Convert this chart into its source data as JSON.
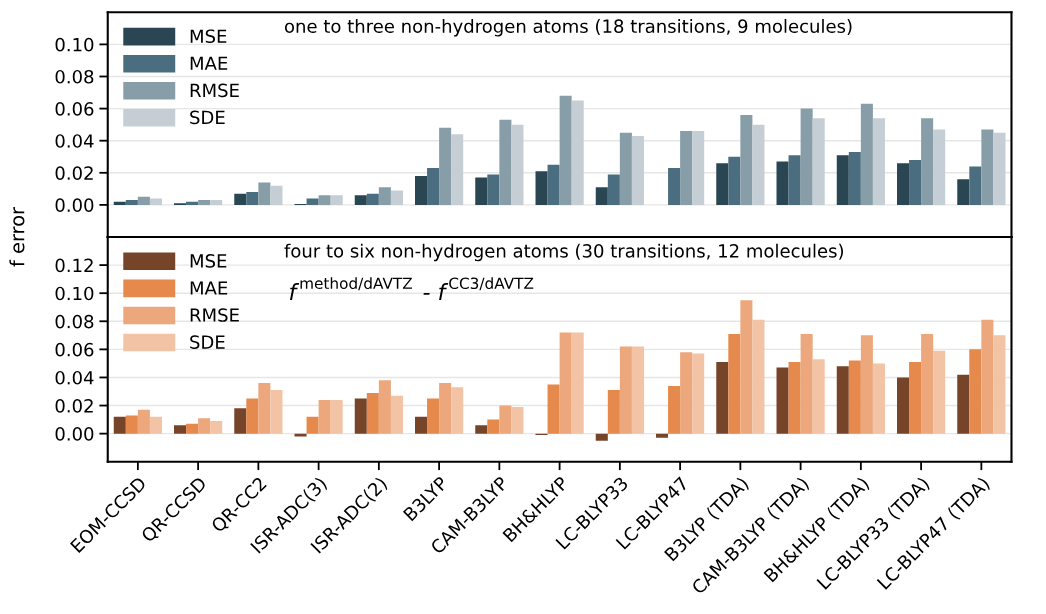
{
  "chart_data": [
    {
      "type": "bar",
      "title": "one to three non-hydrogen atoms (18 transitions, 9 molecules)",
      "ylabel": "f error",
      "categories": [
        null,
        null,
        null,
        null,
        null,
        null,
        null,
        null,
        null,
        null,
        null,
        null,
        null,
        null,
        null
      ],
      "series": [
        {
          "name": "MSE",
          "color": "#2b4653",
          "values": [
            0.002,
            0.001,
            0.007,
            0.0005,
            0.006,
            0.018,
            0.017,
            0.021,
            0.011,
            0.0,
            0.026,
            0.027,
            0.031,
            0.026,
            0.016
          ]
        },
        {
          "name": "MAE",
          "color": "#4a6e7f",
          "values": [
            0.003,
            0.002,
            0.008,
            0.004,
            0.007,
            0.023,
            0.019,
            0.025,
            0.019,
            0.023,
            0.03,
            0.031,
            0.033,
            0.028,
            0.024
          ]
        },
        {
          "name": "RMSE",
          "color": "#879ea8",
          "values": [
            0.005,
            0.003,
            0.014,
            0.006,
            0.011,
            0.048,
            0.053,
            0.068,
            0.045,
            0.046,
            0.056,
            0.06,
            0.063,
            0.054,
            0.047
          ]
        },
        {
          "name": "SDE",
          "color": "#c4ced4",
          "values": [
            0.004,
            0.003,
            0.012,
            0.006,
            0.009,
            0.044,
            0.05,
            0.065,
            0.043,
            0.046,
            0.05,
            0.054,
            0.054,
            0.047,
            0.045
          ]
        }
      ],
      "ylim": [
        -0.02,
        0.12
      ],
      "yticks": [
        {
          "value": 0,
          "label": "0.00"
        },
        {
          "value": 0.02,
          "label": "0.02"
        },
        {
          "value": 0.04,
          "label": "0.04"
        },
        {
          "value": 0.06,
          "label": "0.06"
        },
        {
          "value": 0.08,
          "label": "0.08"
        },
        {
          "value": 0.1,
          "label": "0.10"
        }
      ],
      "grid": "y",
      "legend": "top left"
    },
    {
      "type": "bar",
      "title": "four to six non-hydrogen atoms (30 transitions, 12 molecules)",
      "annotations": [
        "f$^{method/dAVTZ}$ - f$^{CC3/dAVTZ}$"
      ],
      "categories": [
        "EOM-CCSD",
        "QR-CCSD",
        "QR-CC2",
        "ISR-ADC(3)",
        "ISR-ADC(2)",
        "B3LYP",
        "CAM-B3LYP",
        "BH&HLYP",
        "LC-BLYP33",
        "LC-BLYP47",
        "B3LYP (TDA)",
        "CAM-B3LYP (TDA)",
        "BH&HLYP (TDA)",
        "LC-BLYP33 (TDA)",
        "LC-BLYP47 (TDA)"
      ],
      "series": [
        {
          "name": "MSE",
          "color": "#764429",
          "values": [
            0.012,
            0.006,
            0.018,
            -0.002,
            0.025,
            0.012,
            0.006,
            -0.001,
            -0.005,
            -0.003,
            0.051,
            0.047,
            0.048,
            0.04,
            0.042
          ]
        },
        {
          "name": "MAE",
          "color": "#e58a4c",
          "values": [
            0.013,
            0.007,
            0.025,
            0.012,
            0.029,
            0.025,
            0.01,
            0.035,
            0.031,
            0.034,
            0.071,
            0.051,
            0.052,
            0.051,
            0.06
          ]
        },
        {
          "name": "RMSE",
          "color": "#eca87c",
          "values": [
            0.017,
            0.011,
            0.036,
            0.024,
            0.038,
            0.036,
            0.02,
            0.072,
            0.062,
            0.058,
            0.095,
            0.071,
            0.07,
            0.071,
            0.081
          ]
        },
        {
          "name": "SDE",
          "color": "#f2c3a5",
          "values": [
            0.012,
            0.009,
            0.031,
            0.024,
            0.027,
            0.033,
            0.019,
            0.072,
            0.062,
            0.057,
            0.081,
            0.053,
            0.05,
            0.059,
            0.07
          ]
        }
      ],
      "ylim": [
        -0.02,
        0.14
      ],
      "yticks": [
        {
          "value": 0,
          "label": "0.00"
        },
        {
          "value": 0.02,
          "label": "0.02"
        },
        {
          "value": 0.04,
          "label": "0.04"
        },
        {
          "value": 0.06,
          "label": "0.06"
        },
        {
          "value": 0.08,
          "label": "0.08"
        },
        {
          "value": 0.1,
          "label": "0.10"
        },
        {
          "value": 0.12,
          "label": "0.12"
        }
      ],
      "grid": "y",
      "legend": "top left"
    }
  ]
}
